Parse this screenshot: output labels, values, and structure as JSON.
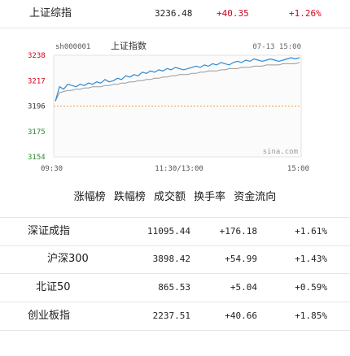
{
  "header_index": {
    "name": "上证综指",
    "price": "3236.48",
    "change": "+40.35",
    "pct": "+1.26%"
  },
  "chart_data": {
    "type": "line",
    "code": "sh000001",
    "title": "上证指数",
    "datetime": "07-13 15:00",
    "watermark": "sina.com",
    "y_ticks": [
      "3238",
      "3217",
      "3196",
      "3175",
      "3154"
    ],
    "x_ticks": [
      "09:30",
      "11:30/13:00",
      "15:00"
    ],
    "ylim": [
      3154,
      3238
    ],
    "prev_close": 3196,
    "colors": {
      "price": "#2f8bd6",
      "avg": "#999999",
      "prev_close": "#e8a33a",
      "up_axis": "#d0021b",
      "down_axis": "#2e8b2e"
    },
    "series": [
      {
        "values": [
          3200,
          3212,
          3210,
          3214,
          3213,
          3212,
          3214,
          3213,
          3215,
          3214,
          3216,
          3215,
          3218,
          3216,
          3217,
          3219,
          3218,
          3221,
          3220,
          3222,
          3221,
          3224,
          3223,
          3225,
          3224,
          3226,
          3225,
          3227,
          3226,
          3228,
          3227,
          3226,
          3227,
          3228,
          3229,
          3228,
          3230,
          3229,
          3231,
          3230,
          3232,
          3231,
          3230,
          3232,
          3233,
          3232,
          3234,
          3233,
          3235,
          3234,
          3233,
          3234,
          3235,
          3234,
          3233,
          3234,
          3235,
          3236,
          3235,
          3236
        ]
      },
      {
        "values": [
          3200,
          3207,
          3208,
          3209,
          3209,
          3210,
          3210,
          3211,
          3211,
          3212,
          3212,
          3212,
          3213,
          3213,
          3214,
          3214,
          3215,
          3215,
          3216,
          3216,
          3217,
          3217,
          3218,
          3218,
          3219,
          3219,
          3220,
          3220,
          3221,
          3221,
          3222,
          3222,
          3222,
          3223,
          3223,
          3224,
          3224,
          3225,
          3225,
          3225,
          3226,
          3226,
          3227,
          3227,
          3227,
          3228,
          3228,
          3228,
          3229,
          3229,
          3229,
          3230,
          3230,
          3230,
          3230,
          3231,
          3231,
          3231,
          3231,
          3232
        ]
      }
    ]
  },
  "tabs": [
    "涨幅榜",
    "跌幅榜",
    "成交额",
    "换手率",
    "资金流向"
  ],
  "indices": [
    {
      "name": "深证成指",
      "price": "11095.44",
      "change": "+176.18",
      "pct": "+1.61%"
    },
    {
      "name": "沪深300",
      "price": "3898.42",
      "change": "+54.99",
      "pct": "+1.43%"
    },
    {
      "name": "北证50",
      "price": "865.53",
      "change": "+5.04",
      "pct": "+0.59%"
    },
    {
      "name": "创业板指",
      "price": "2237.51",
      "change": "+40.66",
      "pct": "+1.85%"
    }
  ]
}
